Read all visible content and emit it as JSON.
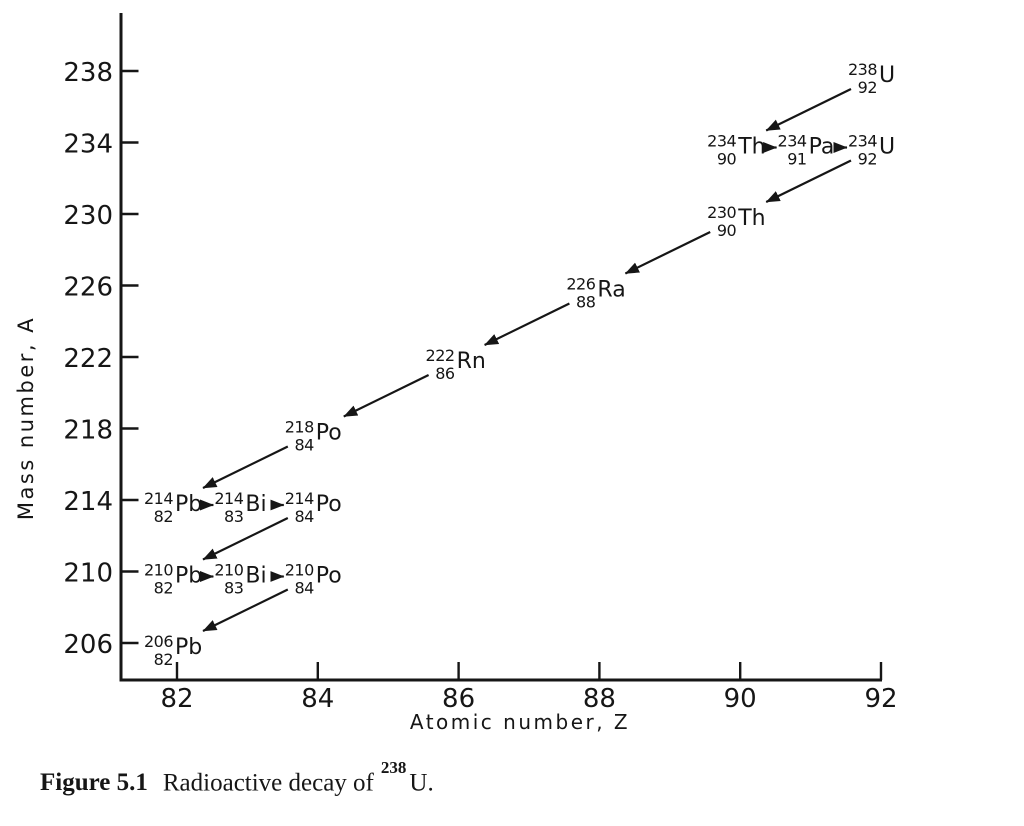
{
  "page": {
    "paper_color": "#ffffff",
    "ink_color": "#161616"
  },
  "caption": {
    "label": "Figure 5.1",
    "text": "Radioactive decay of",
    "nuclide_mass": "238",
    "nuclide_symbol": "U",
    "suffix": "."
  },
  "chart_data": {
    "type": "scatter",
    "title": "",
    "xlabel": "Atomic number, Z",
    "ylabel": "Mass number, A",
    "x_ticks": [
      82,
      84,
      86,
      88,
      90,
      92
    ],
    "y_ticks": [
      206,
      210,
      214,
      218,
      222,
      226,
      230,
      234,
      238
    ],
    "xlim": [
      81.2,
      92.1
    ],
    "ylim": [
      203.8,
      241.4
    ],
    "grid": false,
    "legend": false,
    "nuclides": [
      {
        "id": "238U",
        "mass": 238,
        "z": 92,
        "symbol": "U"
      },
      {
        "id": "234Th",
        "mass": 234,
        "z": 90,
        "symbol": "Th"
      },
      {
        "id": "234Pa",
        "mass": 234,
        "z": 91,
        "symbol": "Pa"
      },
      {
        "id": "234U",
        "mass": 234,
        "z": 92,
        "symbol": "U"
      },
      {
        "id": "230Th",
        "mass": 230,
        "z": 90,
        "symbol": "Th"
      },
      {
        "id": "226Ra",
        "mass": 226,
        "z": 88,
        "symbol": "Ra"
      },
      {
        "id": "222Rn",
        "mass": 222,
        "z": 86,
        "symbol": "Rn"
      },
      {
        "id": "218Po",
        "mass": 218,
        "z": 84,
        "symbol": "Po"
      },
      {
        "id": "214Pb",
        "mass": 214,
        "z": 82,
        "symbol": "Pb"
      },
      {
        "id": "214Bi",
        "mass": 214,
        "z": 83,
        "symbol": "Bi"
      },
      {
        "id": "214Po",
        "mass": 214,
        "z": 84,
        "symbol": "Po"
      },
      {
        "id": "210Pb",
        "mass": 210,
        "z": 82,
        "symbol": "Pb"
      },
      {
        "id": "210Bi",
        "mass": 210,
        "z": 83,
        "symbol": "Bi"
      },
      {
        "id": "210Po",
        "mass": 210,
        "z": 84,
        "symbol": "Po"
      },
      {
        "id": "206Pb",
        "mass": 206,
        "z": 82,
        "symbol": "Pb"
      }
    ],
    "decays": [
      {
        "from": "238U",
        "to": "234Th",
        "type": "alpha"
      },
      {
        "from": "234Th",
        "to": "234Pa",
        "type": "beta"
      },
      {
        "from": "234Pa",
        "to": "234U",
        "type": "beta"
      },
      {
        "from": "234U",
        "to": "230Th",
        "type": "alpha"
      },
      {
        "from": "230Th",
        "to": "226Ra",
        "type": "alpha"
      },
      {
        "from": "226Ra",
        "to": "222Rn",
        "type": "alpha"
      },
      {
        "from": "222Rn",
        "to": "218Po",
        "type": "alpha"
      },
      {
        "from": "218Po",
        "to": "214Pb",
        "type": "alpha"
      },
      {
        "from": "214Pb",
        "to": "214Bi",
        "type": "beta"
      },
      {
        "from": "214Bi",
        "to": "214Po",
        "type": "beta"
      },
      {
        "from": "214Po",
        "to": "210Pb",
        "type": "alpha"
      },
      {
        "from": "210Pb",
        "to": "210Bi",
        "type": "beta"
      },
      {
        "from": "210Bi",
        "to": "210Po",
        "type": "beta"
      },
      {
        "from": "210Po",
        "to": "206Pb",
        "type": "alpha"
      }
    ]
  }
}
